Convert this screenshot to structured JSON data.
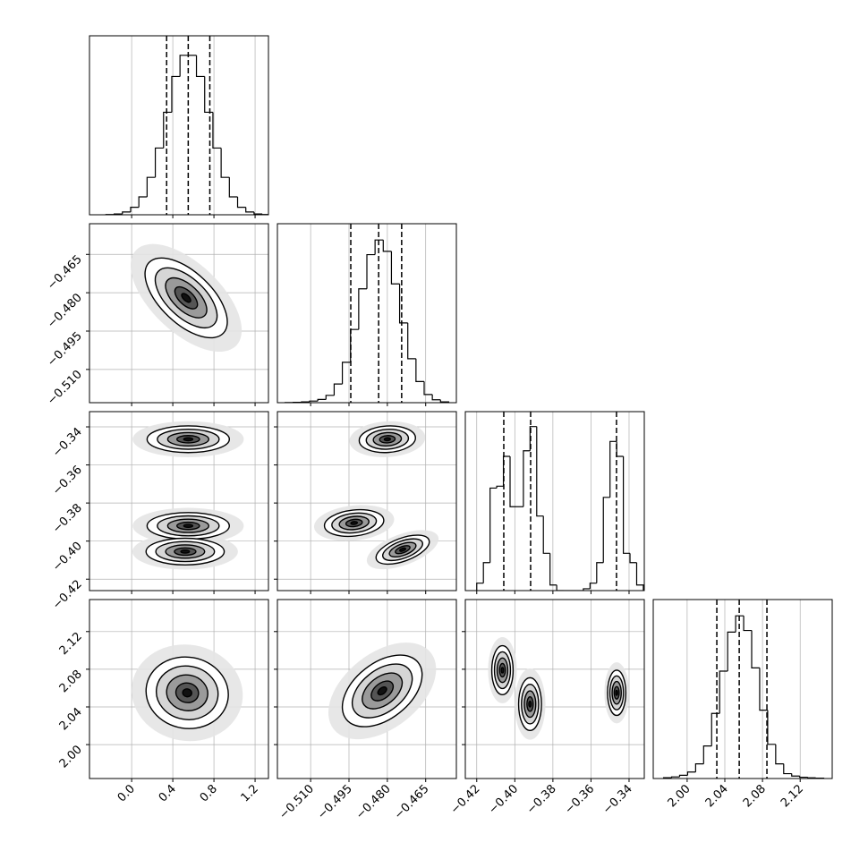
{
  "chart_data": {
    "type": "corner",
    "grid": true,
    "params": [
      {
        "lim": [
          -0.41,
          1.33
        ],
        "ticks": [
          {
            "value": 0,
            "label": "0.0"
          },
          0.4,
          0.8,
          1.2
        ]
      },
      {
        "lim": [
          -0.523,
          -0.453
        ],
        "ticks": [
          {
            "value": -0.51,
            "label": "−0.510"
          },
          {
            "value": -0.495,
            "label": "−0.495"
          },
          {
            "value": -0.48,
            "label": "−0.480"
          },
          {
            "value": -0.465,
            "label": "−0.465"
          }
        ]
      },
      {
        "lim": [
          -0.426,
          -0.332
        ],
        "ticks": [
          {
            "value": -0.42,
            "label": "−0.42"
          },
          {
            "value": -0.4,
            "label": "−0.40"
          },
          {
            "value": -0.38,
            "label": "−0.38"
          },
          {
            "value": -0.36,
            "label": "−0.36"
          },
          {
            "value": -0.34,
            "label": "−0.34"
          }
        ]
      },
      {
        "lim": [
          1.964,
          2.154
        ],
        "ticks": [
          {
            "value": 2,
            "label": "2.00"
          },
          2.04,
          2.08,
          2.12
        ]
      }
    ],
    "histograms": [
      {
        "ylim": [
          0,
          110
        ],
        "bins": [
          -0.25,
          -0.17,
          -0.09,
          -0.01,
          0.07,
          0.15,
          0.23,
          0.31,
          0.39,
          0.47,
          0.55,
          0.63,
          0.71,
          0.79,
          0.87,
          0.95,
          1.03,
          1.11,
          1.19,
          1.27,
          1.35
        ],
        "counts": [
          0.14,
          0.5,
          1.7,
          4.6,
          11,
          23,
          41,
          63,
          85,
          98,
          98,
          85,
          63,
          41,
          23,
          11,
          4.6,
          1.7,
          0.5,
          0.14
        ],
        "quantiles": [
          0.34,
          0.55,
          0.76
        ]
      },
      {
        "ylim": [
          0,
          110
        ],
        "bins": [
          -0.52,
          -0.5168,
          -0.5136,
          -0.5104,
          -0.5072,
          -0.504,
          -0.5008,
          -0.4976,
          -0.4944,
          -0.4912,
          -0.488,
          -0.4848,
          -0.4816,
          -0.4784,
          -0.4752,
          -0.472,
          -0.4688,
          -0.4656,
          -0.4624,
          -0.4592,
          -0.456
        ],
        "counts": [
          0.1,
          0.2,
          0.5,
          1,
          2,
          4.5,
          11.5,
          24.8,
          45,
          70,
          91,
          100,
          93,
          73,
          49,
          27,
          13,
          5,
          1.8,
          0.5
        ],
        "quantiles": [
          -0.4943,
          -0.4834,
          -0.4744
        ]
      },
      {
        "ylim": [
          0,
          96
        ],
        "bins": [
          -0.42,
          -0.4165,
          -0.413,
          -0.4095,
          -0.406,
          -0.4025,
          -0.399,
          -0.3955,
          -0.392,
          -0.3885,
          -0.385,
          -0.3815,
          -0.378,
          -0.3745,
          -0.371,
          -0.3675,
          -0.364,
          -0.3605,
          -0.357,
          -0.3535,
          -0.35,
          -0.3465,
          -0.343,
          -0.3395,
          -0.336,
          -0.3325
        ],
        "counts": [
          4,
          15,
          55,
          56,
          72,
          45,
          45,
          75,
          88,
          40,
          20,
          3,
          0,
          0,
          0,
          0,
          1,
          4,
          15,
          50,
          80,
          72,
          20,
          15,
          3
        ],
        "quantiles": [
          -0.4058,
          -0.3917,
          -0.3466
        ]
      },
      {
        "ylim": [
          0,
          110
        ],
        "bins": [
          1.975,
          1.9835,
          1.992,
          2.0005,
          2.009,
          2.0175,
          2.026,
          2.0345,
          2.043,
          2.0515,
          2.06,
          2.0685,
          2.077,
          2.0855,
          2.094,
          2.1025,
          2.111,
          2.1195,
          2.128,
          2.1365,
          2.145
        ],
        "counts": [
          0.5,
          1,
          2,
          4,
          9,
          20,
          40,
          66,
          90,
          100,
          91,
          68,
          42,
          21,
          9,
          3,
          1.5,
          0.8,
          0.4,
          0.2
        ],
        "quantiles": [
          2.0315,
          2.0553,
          2.0847
        ]
      }
    ],
    "pairs": [
      {
        "blobs": [
          {
            "x": 0.53,
            "y": -0.482,
            "sx": 0.2,
            "sy": 0.0078,
            "rho": -0.6
          }
        ]
      },
      {
        "blobs": [
          {
            "x": 0.55,
            "y": -0.3465,
            "sx": 0.2,
            "sy": 0.0035,
            "rho": 0
          },
          {
            "x": 0.55,
            "y": -0.392,
            "sx": 0.2,
            "sy": 0.0035,
            "rho": 0
          },
          {
            "x": 0.52,
            "y": -0.4055,
            "sx": 0.19,
            "sy": 0.0035,
            "rho": 0
          }
        ]
      },
      {
        "blobs": [
          {
            "x": -0.48,
            "y": -0.3465,
            "sx": 0.0055,
            "sy": 0.0035,
            "rho": 0.1
          },
          {
            "x": -0.493,
            "y": -0.3905,
            "sx": 0.0058,
            "sy": 0.0035,
            "rho": 0.2
          },
          {
            "x": -0.474,
            "y": -0.4045,
            "sx": 0.0052,
            "sy": 0.0038,
            "rho": 0.55
          }
        ]
      },
      {
        "blobs": [
          {
            "x": 0.54,
            "y": 2.055,
            "sx": 0.2,
            "sy": 0.019,
            "rho": -0.05
          }
        ]
      },
      {
        "blobs": [
          {
            "x": -0.482,
            "y": 2.057,
            "sx": 0.0078,
            "sy": 0.019,
            "rho": 0.45
          }
        ]
      },
      {
        "blobs": [
          {
            "x": -0.4065,
            "y": 2.079,
            "sx": 0.0028,
            "sy": 0.013,
            "rho": 0
          },
          {
            "x": -0.392,
            "y": 2.043,
            "sx": 0.003,
            "sy": 0.014,
            "rho": 0
          },
          {
            "x": -0.3465,
            "y": 2.055,
            "sx": 0.0024,
            "sy": 0.012,
            "rho": 0
          }
        ]
      }
    ]
  }
}
